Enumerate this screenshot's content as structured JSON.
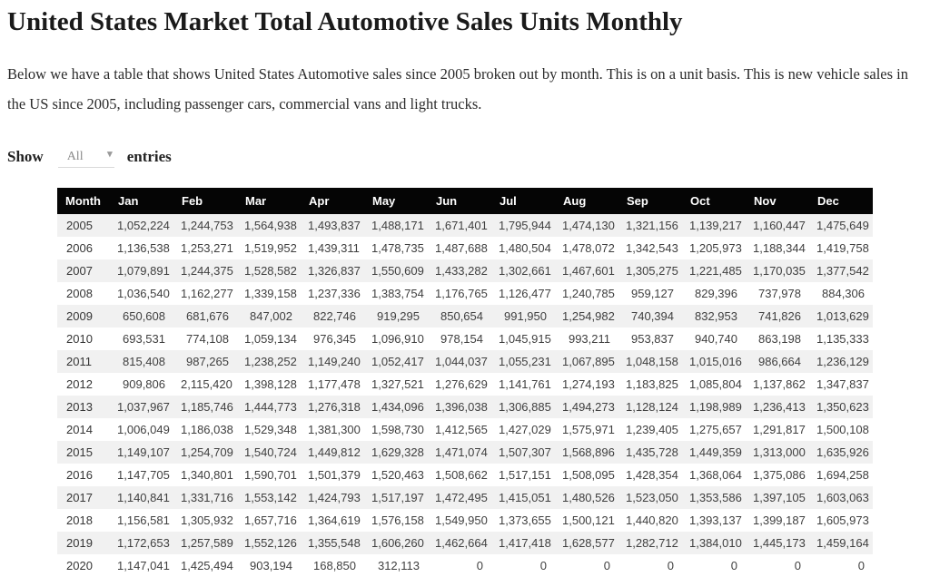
{
  "page": {
    "title": "United States Market Total Automotive Sales Units Monthly",
    "description": "Below we have a table that shows United States Automotive sales since 2005 broken out by month. This is on a unit basis. This is new vehicle sales in the US since 2005, including passenger cars, commercial vans and light trucks."
  },
  "controls": {
    "show_label": "Show",
    "entries_label": "entries",
    "selected_option": "All"
  },
  "table": {
    "columns": [
      "Month",
      "Jan",
      "Feb",
      "Mar",
      "Apr",
      "May",
      "Jun",
      "Jul",
      "Aug",
      "Sep",
      "Oct",
      "Nov",
      "Dec"
    ],
    "rows": [
      {
        "month": "2005",
        "values": [
          "1,052,224",
          "1,244,753",
          "1,564,938",
          "1,493,837",
          "1,488,171",
          "1,671,401",
          "1,795,944",
          "1,474,130",
          "1,321,156",
          "1,139,217",
          "1,160,447",
          "1,475,649"
        ]
      },
      {
        "month": "2006",
        "values": [
          "1,136,538",
          "1,253,271",
          "1,519,952",
          "1,439,311",
          "1,478,735",
          "1,487,688",
          "1,480,504",
          "1,478,072",
          "1,342,543",
          "1,205,973",
          "1,188,344",
          "1,419,758"
        ]
      },
      {
        "month": "2007",
        "values": [
          "1,079,891",
          "1,244,375",
          "1,528,582",
          "1,326,837",
          "1,550,609",
          "1,433,282",
          "1,302,661",
          "1,467,601",
          "1,305,275",
          "1,221,485",
          "1,170,035",
          "1,377,542"
        ]
      },
      {
        "month": "2008",
        "values": [
          "1,036,540",
          "1,162,277",
          "1,339,158",
          "1,237,336",
          "1,383,754",
          "1,176,765",
          "1,126,477",
          "1,240,785",
          "959,127",
          "829,396",
          "737,978",
          "884,306"
        ]
      },
      {
        "month": "2009",
        "values": [
          "650,608",
          "681,676",
          "847,002",
          "822,746",
          "919,295",
          "850,654",
          "991,950",
          "1,254,982",
          "740,394",
          "832,953",
          "741,826",
          "1,013,629"
        ]
      },
      {
        "month": "2010",
        "values": [
          "693,531",
          "774,108",
          "1,059,134",
          "976,345",
          "1,096,910",
          "978,154",
          "1,045,915",
          "993,211",
          "953,837",
          "940,740",
          "863,198",
          "1,135,333"
        ]
      },
      {
        "month": "2011",
        "values": [
          "815,408",
          "987,265",
          "1,238,252",
          "1,149,240",
          "1,052,417",
          "1,044,037",
          "1,055,231",
          "1,067,895",
          "1,048,158",
          "1,015,016",
          "986,664",
          "1,236,129"
        ]
      },
      {
        "month": "2012",
        "values": [
          "909,806",
          "2,115,420",
          "1,398,128",
          "1,177,478",
          "1,327,521",
          "1,276,629",
          "1,141,761",
          "1,274,193",
          "1,183,825",
          "1,085,804",
          "1,137,862",
          "1,347,837"
        ]
      },
      {
        "month": "2013",
        "values": [
          "1,037,967",
          "1,185,746",
          "1,444,773",
          "1,276,318",
          "1,434,096",
          "1,396,038",
          "1,306,885",
          "1,494,273",
          "1,128,124",
          "1,198,989",
          "1,236,413",
          "1,350,623"
        ]
      },
      {
        "month": "2014",
        "values": [
          "1,006,049",
          "1,186,038",
          "1,529,348",
          "1,381,300",
          "1,598,730",
          "1,412,565",
          "1,427,029",
          "1,575,971",
          "1,239,405",
          "1,275,657",
          "1,291,817",
          "1,500,108"
        ]
      },
      {
        "month": "2015",
        "values": [
          "1,149,107",
          "1,254,709",
          "1,540,724",
          "1,449,812",
          "1,629,328",
          "1,471,074",
          "1,507,307",
          "1,568,896",
          "1,435,728",
          "1,449,359",
          "1,313,000",
          "1,635,926"
        ]
      },
      {
        "month": "2016",
        "values": [
          "1,147,705",
          "1,340,801",
          "1,590,701",
          "1,501,379",
          "1,520,463",
          "1,508,662",
          "1,517,151",
          "1,508,095",
          "1,428,354",
          "1,368,064",
          "1,375,086",
          "1,694,258"
        ]
      },
      {
        "month": "2017",
        "values": [
          "1,140,841",
          "1,331,716",
          "1,553,142",
          "1,424,793",
          "1,517,197",
          "1,472,495",
          "1,415,051",
          "1,480,526",
          "1,523,050",
          "1,353,586",
          "1,397,105",
          "1,603,063"
        ]
      },
      {
        "month": "2018",
        "values": [
          "1,156,581",
          "1,305,932",
          "1,657,716",
          "1,364,619",
          "1,576,158",
          "1,549,950",
          "1,373,655",
          "1,500,121",
          "1,440,820",
          "1,393,137",
          "1,399,187",
          "1,605,973"
        ]
      },
      {
        "month": "2019",
        "values": [
          "1,172,653",
          "1,257,589",
          "1,552,126",
          "1,355,548",
          "1,606,260",
          "1,462,664",
          "1,417,418",
          "1,628,577",
          "1,282,712",
          "1,384,010",
          "1,445,173",
          "1,459,164"
        ]
      },
      {
        "month": "2020",
        "values": [
          "1,147,041",
          "1,425,494",
          "903,194",
          "168,850",
          "312,113",
          "0",
          "0",
          "0",
          "0",
          "0",
          "0",
          "0"
        ]
      }
    ]
  }
}
